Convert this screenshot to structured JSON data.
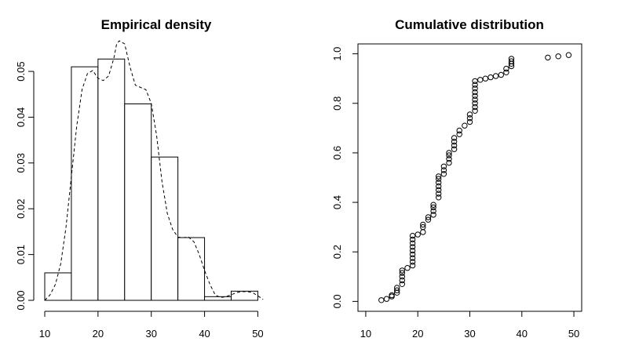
{
  "chart_data": [
    {
      "type": "bar",
      "title": "Empirical density",
      "xlabel": "",
      "ylabel": "",
      "xlim": [
        10,
        52
      ],
      "ylim": [
        0,
        0.056
      ],
      "x_ticks": [
        10,
        20,
        30,
        40,
        50
      ],
      "y_ticks": [
        0.0,
        0.01,
        0.02,
        0.03,
        0.04,
        0.05
      ],
      "y_tick_labels": [
        "0.00",
        "0.01",
        "0.02",
        "0.03",
        "0.04",
        "0.05"
      ],
      "bins": [
        {
          "from": 10,
          "to": 15,
          "density": 0.006
        },
        {
          "from": 15,
          "to": 20,
          "density": 0.051
        },
        {
          "from": 20,
          "to": 25,
          "density": 0.0527
        },
        {
          "from": 25,
          "to": 30,
          "density": 0.0429
        },
        {
          "from": 30,
          "to": 35,
          "density": 0.0313
        },
        {
          "from": 35,
          "to": 40,
          "density": 0.0137
        },
        {
          "from": 40,
          "to": 45,
          "density": 0.0008
        },
        {
          "from": 45,
          "to": 50,
          "density": 0.002
        }
      ],
      "density_curve": {
        "style": "dashed",
        "x": [
          10,
          11,
          12,
          13,
          14,
          15,
          16,
          17,
          18,
          19,
          20,
          21,
          22,
          23,
          23.5,
          24,
          25,
          26,
          27,
          28,
          29,
          30,
          31,
          32,
          33,
          34,
          35,
          36,
          37,
          38,
          39,
          40,
          41,
          42,
          43,
          44,
          45,
          46,
          47,
          48,
          49,
          50,
          51
        ],
        "y": [
          0.0,
          0.0012,
          0.0035,
          0.008,
          0.016,
          0.027,
          0.038,
          0.046,
          0.0495,
          0.0502,
          0.0485,
          0.048,
          0.049,
          0.053,
          0.056,
          0.058,
          0.056,
          0.051,
          0.047,
          0.0465,
          0.046,
          0.043,
          0.036,
          0.026,
          0.019,
          0.0155,
          0.0138,
          0.0137,
          0.0138,
          0.0128,
          0.01,
          0.0065,
          0.0035,
          0.0012,
          0.0006,
          0.0008,
          0.0012,
          0.0017,
          0.0019,
          0.0019,
          0.0017,
          0.001,
          0.0002
        ]
      }
    },
    {
      "type": "scatter",
      "title": "Cumulative distribution",
      "xlabel": "",
      "ylabel": "",
      "xlim": [
        8.5,
        51.5
      ],
      "ylim": [
        -0.04,
        1.04
      ],
      "x_ticks": [
        10,
        20,
        30,
        40,
        50
      ],
      "y_ticks": [
        0.0,
        0.2,
        0.4,
        0.6,
        0.8,
        1.0
      ],
      "y_tick_labels": [
        "0.0",
        "0.2",
        "0.4",
        "0.6",
        "0.8",
        "1.0"
      ],
      "marker": "open-circle",
      "points": [
        [
          13,
          0.005
        ],
        [
          14,
          0.01
        ],
        [
          15,
          0.02
        ],
        [
          15,
          0.025
        ],
        [
          16,
          0.035
        ],
        [
          16,
          0.045
        ],
        [
          16,
          0.055
        ],
        [
          17,
          0.07
        ],
        [
          17,
          0.085
        ],
        [
          17,
          0.1
        ],
        [
          17,
          0.115
        ],
        [
          17,
          0.125
        ],
        [
          18,
          0.135
        ],
        [
          19,
          0.145
        ],
        [
          19,
          0.16
        ],
        [
          19,
          0.175
        ],
        [
          19,
          0.19
        ],
        [
          19,
          0.205
        ],
        [
          19,
          0.22
        ],
        [
          19,
          0.235
        ],
        [
          19,
          0.25
        ],
        [
          19,
          0.265
        ],
        [
          20,
          0.27
        ],
        [
          21,
          0.28
        ],
        [
          21,
          0.3
        ],
        [
          21,
          0.31
        ],
        [
          22,
          0.33
        ],
        [
          22,
          0.34
        ],
        [
          23,
          0.35
        ],
        [
          23,
          0.365
        ],
        [
          23,
          0.38
        ],
        [
          23,
          0.39
        ],
        [
          24,
          0.42
        ],
        [
          24,
          0.435
        ],
        [
          24,
          0.45
        ],
        [
          24,
          0.465
        ],
        [
          24,
          0.48
        ],
        [
          24,
          0.495
        ],
        [
          24,
          0.505
        ],
        [
          25,
          0.515
        ],
        [
          25,
          0.53
        ],
        [
          25,
          0.545
        ],
        [
          26,
          0.56
        ],
        [
          26,
          0.575
        ],
        [
          26,
          0.59
        ],
        [
          26,
          0.6
        ],
        [
          27,
          0.615
        ],
        [
          27,
          0.63
        ],
        [
          27,
          0.645
        ],
        [
          27,
          0.66
        ],
        [
          28,
          0.675
        ],
        [
          28,
          0.69
        ],
        [
          29,
          0.71
        ],
        [
          30,
          0.725
        ],
        [
          30,
          0.74
        ],
        [
          30,
          0.755
        ],
        [
          31,
          0.77
        ],
        [
          31,
          0.785
        ],
        [
          31,
          0.8
        ],
        [
          31,
          0.815
        ],
        [
          31,
          0.83
        ],
        [
          31,
          0.845
        ],
        [
          31,
          0.86
        ],
        [
          31,
          0.875
        ],
        [
          31,
          0.89
        ],
        [
          32,
          0.895
        ],
        [
          33,
          0.9
        ],
        [
          34,
          0.905
        ],
        [
          35,
          0.91
        ],
        [
          36,
          0.915
        ],
        [
          37,
          0.925
        ],
        [
          37,
          0.94
        ],
        [
          38,
          0.95
        ],
        [
          38,
          0.96
        ],
        [
          38,
          0.97
        ],
        [
          38,
          0.98
        ],
        [
          45,
          0.985
        ],
        [
          47,
          0.99
        ],
        [
          49,
          0.995
        ]
      ]
    }
  ]
}
